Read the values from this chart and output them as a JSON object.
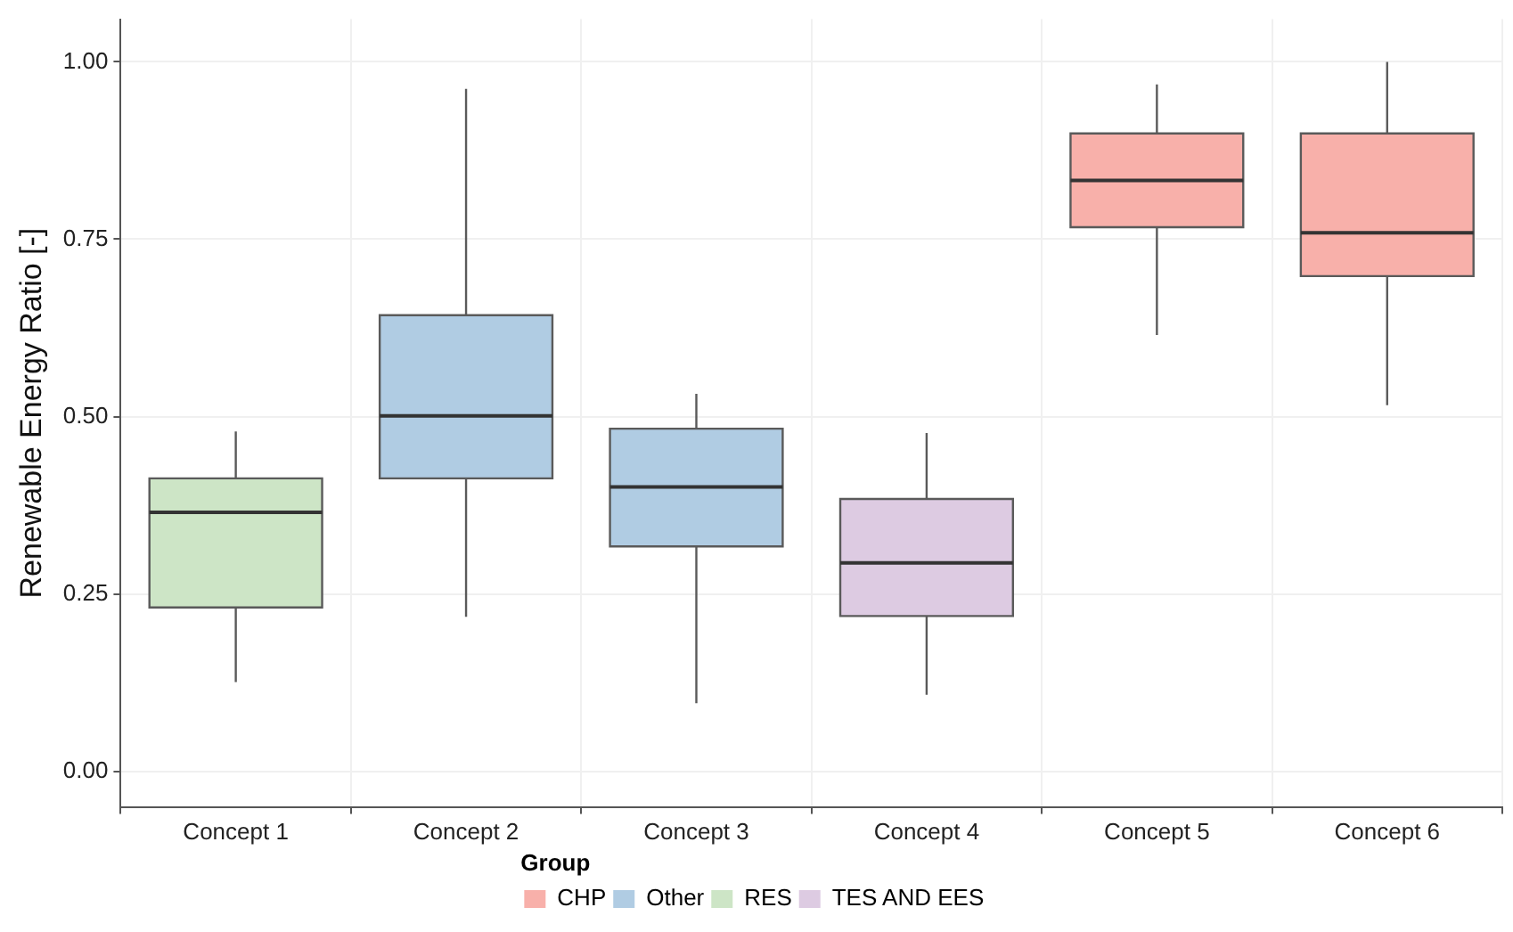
{
  "chart_data": {
    "type": "box",
    "ylabel": "Renewable Energy Ratio [-]",
    "legend_title": "Group",
    "categories": [
      "Concept 1",
      "Concept 2",
      "Concept 3",
      "Concept 4",
      "Concept 5",
      "Concept 6"
    ],
    "series": [
      {
        "name": "CHP",
        "color": "#f8b0aa",
        "boxes": [
          null,
          null,
          null,
          null,
          {
            "low": 0.615,
            "q1": 0.767,
            "median": 0.833,
            "q3": 0.899,
            "high": 0.968
          },
          {
            "low": 0.516,
            "q1": 0.698,
            "median": 0.759,
            "q3": 0.899,
            "high": 1.0
          }
        ]
      },
      {
        "name": "Other",
        "color": "#b0cce3",
        "boxes": [
          null,
          {
            "low": 0.218,
            "q1": 0.413,
            "median": 0.501,
            "q3": 0.643,
            "high": 0.962
          },
          {
            "low": 0.096,
            "q1": 0.317,
            "median": 0.401,
            "q3": 0.483,
            "high": 0.532
          },
          null,
          null,
          null
        ]
      },
      {
        "name": "RES",
        "color": "#cde5c6",
        "boxes": [
          {
            "low": 0.126,
            "q1": 0.231,
            "median": 0.365,
            "q3": 0.413,
            "high": 0.479
          },
          null,
          null,
          null,
          null,
          null
        ]
      },
      {
        "name": "TES AND EES",
        "color": "#ddcbe2",
        "boxes": [
          null,
          null,
          null,
          {
            "low": 0.108,
            "q1": 0.219,
            "median": 0.294,
            "q3": 0.384,
            "high": 0.477
          },
          null,
          null
        ]
      }
    ],
    "ylim": [
      -0.05,
      1.06
    ],
    "yticks": [
      {
        "value": 0,
        "label": "0.00"
      },
      {
        "value": 0.25,
        "label": "0.25"
      },
      {
        "value": 0.5,
        "label": "0.50"
      },
      {
        "value": 0.75,
        "label": "0.75"
      },
      {
        "value": 1,
        "label": "1.00"
      }
    ],
    "grid": true,
    "legend": "bottom"
  }
}
